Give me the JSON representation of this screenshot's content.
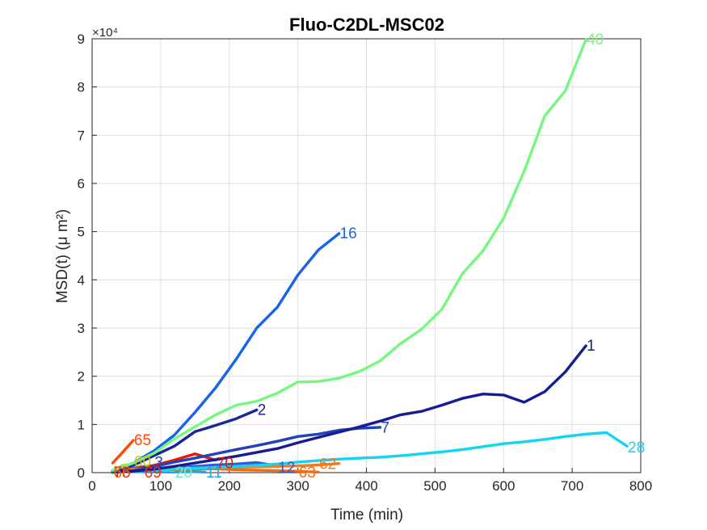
{
  "chart_data": {
    "type": "line",
    "title": "Fluo-C2DL-MSC02",
    "xlabel": "Time (min)",
    "ylabel": "MSD(t) (μ m²)",
    "y_exponent_label": "×10⁴",
    "xlim": [
      0,
      800
    ],
    "ylim": [
      0,
      90000
    ],
    "xticks": [
      0,
      100,
      200,
      300,
      400,
      500,
      600,
      700,
      800
    ],
    "yticks": [
      0,
      10000,
      20000,
      30000,
      40000,
      50000,
      60000,
      70000,
      80000,
      90000
    ],
    "ytick_labels": [
      "0",
      "1",
      "2",
      "3",
      "4",
      "5",
      "6",
      "7",
      "8",
      "9"
    ],
    "grid": true,
    "series": [
      {
        "name": "40",
        "color": "#77f77f",
        "x": [
          30,
          60,
          90,
          120,
          150,
          180,
          210,
          240,
          270,
          300,
          330,
          360,
          390,
          420,
          450,
          480,
          510,
          540,
          570,
          600,
          630,
          660,
          690,
          720
        ],
        "y": [
          500,
          2000,
          4000,
          7000,
          9500,
          12000,
          14000,
          14800,
          16500,
          18800,
          18900,
          19600,
          21000,
          23200,
          26800,
          29700,
          33900,
          41300,
          46000,
          52800,
          62500,
          74000,
          79200,
          89800
        ]
      },
      {
        "name": "16",
        "color": "#1764e8",
        "x": [
          30,
          60,
          90,
          120,
          150,
          180,
          210,
          240,
          270,
          300,
          330,
          360
        ],
        "y": [
          300,
          2000,
          4500,
          7800,
          12500,
          17600,
          23500,
          30000,
          34300,
          41000,
          46200,
          49600
        ]
      },
      {
        "name": "1",
        "color": "#141c96",
        "x": [
          30,
          60,
          90,
          120,
          150,
          180,
          210,
          240,
          270,
          300,
          330,
          360,
          390,
          420,
          450,
          480,
          510,
          540,
          570,
          600,
          630,
          660,
          690,
          720
        ],
        "y": [
          100,
          300,
          700,
          1300,
          2000,
          2700,
          3400,
          4200,
          5000,
          6200,
          7300,
          8400,
          9500,
          10700,
          12000,
          12700,
          14000,
          15400,
          16300,
          16100,
          14600,
          16800,
          20900,
          26300
        ]
      },
      {
        "name": "2",
        "color": "#1a2699",
        "x": [
          30,
          60,
          90,
          120,
          150,
          180,
          210,
          240
        ],
        "y": [
          200,
          1500,
          3500,
          5500,
          8500,
          9800,
          11200,
          13000
        ]
      },
      {
        "name": "7",
        "color": "#2243b8",
        "x": [
          30,
          60,
          90,
          120,
          150,
          180,
          210,
          240,
          270,
          300,
          330,
          360,
          390,
          420
        ],
        "y": [
          100,
          400,
          1200,
          2200,
          3000,
          3900,
          4800,
          5600,
          6500,
          7500,
          8000,
          8800,
          9200,
          9400
        ]
      },
      {
        "name": "28",
        "color": "#14d4f4",
        "x": [
          30,
          60,
          90,
          120,
          150,
          180,
          210,
          240,
          270,
          300,
          330,
          360,
          390,
          420,
          450,
          480,
          510,
          540,
          570,
          600,
          630,
          660,
          690,
          720,
          750,
          780
        ],
        "y": [
          100,
          300,
          500,
          700,
          900,
          1100,
          1300,
          1500,
          1800,
          2200,
          2500,
          2800,
          3000,
          3200,
          3500,
          3900,
          4300,
          4800,
          5400,
          6000,
          6400,
          6900,
          7500,
          8000,
          8300,
          5500
        ]
      },
      {
        "name": "62",
        "color": "#f07a1c",
        "x": [
          30,
          60,
          90,
          120,
          150,
          180,
          210,
          240,
          270,
          300,
          330,
          360
        ],
        "y": [
          300,
          500,
          700,
          800,
          900,
          1000,
          1100,
          1200,
          1300,
          1400,
          1600,
          1900
        ]
      },
      {
        "name": "63",
        "color": "#f26a14",
        "x": [
          30,
          60,
          90,
          120,
          150,
          180,
          210,
          240,
          270,
          300,
          330
        ],
        "y": [
          400,
          800,
          700,
          600,
          700,
          800,
          600,
          500,
          400,
          300,
          100
        ]
      },
      {
        "name": "65",
        "color": "#ff4a05",
        "x": [
          30,
          45,
          60
        ],
        "y": [
          2000,
          4300,
          6700
        ]
      },
      {
        "name": "70",
        "color": "#e8180a",
        "x": [
          30,
          60,
          90,
          120,
          150,
          180
        ],
        "y": [
          300,
          600,
          1500,
          2600,
          3900,
          2600
        ]
      },
      {
        "name": "12",
        "color": "#2a5fd8",
        "x": [
          30,
          60,
          90,
          120,
          150,
          180,
          210,
          240,
          270
        ],
        "y": [
          200,
          400,
          800,
          1000,
          1300,
          1600,
          1800,
          2100,
          1400
        ]
      },
      {
        "name": "60",
        "color": "#c9c41b",
        "x": [
          30,
          45,
          60
        ],
        "y": [
          500,
          1500,
          1800
        ]
      },
      {
        "name": "69",
        "color": "#ff2a08",
        "x": [
          30,
          45,
          60
        ],
        "y": [
          200,
          500,
          400
        ]
      },
      {
        "name": "20",
        "color": "#5cf0d0",
        "x": [
          60,
          90,
          120
        ],
        "y": [
          400,
          600,
          500
        ]
      },
      {
        "name": "3",
        "color": "#1c45c8",
        "x": [
          30,
          60,
          90
        ],
        "y": [
          300,
          900,
          1500
        ]
      },
      {
        "name": "11",
        "color": "#18a8f0",
        "x": [
          60,
          90,
          120,
          150,
          165
        ],
        "y": [
          200,
          300,
          300,
          200,
          100
        ]
      },
      {
        "name": "78",
        "color": "#c8100c",
        "x": [
          30,
          45
        ],
        "y": [
          200,
          300
        ]
      }
    ],
    "end_labels": [
      {
        "text": "40",
        "series": "40",
        "x": 720,
        "y": 89800,
        "color": "#77f77f"
      },
      {
        "text": "16",
        "series": "16",
        "x": 360,
        "y": 49600,
        "color": "#1764e8"
      },
      {
        "text": "1",
        "series": "1",
        "x": 720,
        "y": 26300,
        "color": "#141c96"
      },
      {
        "text": "2",
        "series": "2",
        "x": 240,
        "y": 13000,
        "color": "#1a2699"
      },
      {
        "text": "7",
        "series": "7",
        "x": 420,
        "y": 9300,
        "color": "#2243b8"
      },
      {
        "text": "28",
        "series": "28",
        "x": 780,
        "y": 5200,
        "color": "#14d4f4"
      },
      {
        "text": "62",
        "series": "62",
        "x": 330,
        "y": 1800,
        "color": "#f07a1c"
      },
      {
        "text": "63",
        "series": "63",
        "x": 300,
        "y": 0,
        "color": "#f26a14"
      },
      {
        "text": "65",
        "series": "65",
        "x": 60,
        "y": 6700,
        "color": "#ff4a05"
      },
      {
        "text": "70",
        "series": "70",
        "x": 180,
        "y": 1900,
        "color": "#e8180a"
      },
      {
        "text": "12",
        "series": "12",
        "x": 270,
        "y": 1000,
        "color": "#2a5fd8"
      },
      {
        "text": "60",
        "series": "60",
        "x": 60,
        "y": 2300,
        "color": "#c9c41b"
      },
      {
        "text": "69",
        "series": "69",
        "x": 75,
        "y": 0,
        "color": "#ff2a08"
      },
      {
        "text": "20",
        "series": "20",
        "x": 120,
        "y": 0,
        "color": "#5cf0d0"
      },
      {
        "text": "3",
        "series": "3",
        "x": 90,
        "y": 2100,
        "color": "#1c45c8"
      },
      {
        "text": "11",
        "series": "11",
        "x": 165,
        "y": 0,
        "color": "#18a8f0"
      },
      {
        "text": "78",
        "series": "78",
        "x": 30,
        "y": 0,
        "color": "#c8100c"
      },
      {
        "text": "75",
        "series": "78",
        "x": 30,
        "y": 0,
        "color": "#d11a0e"
      },
      {
        "text": "66",
        "series": "65",
        "x": 30,
        "y": 0,
        "color": "#ee5a10"
      }
    ]
  }
}
